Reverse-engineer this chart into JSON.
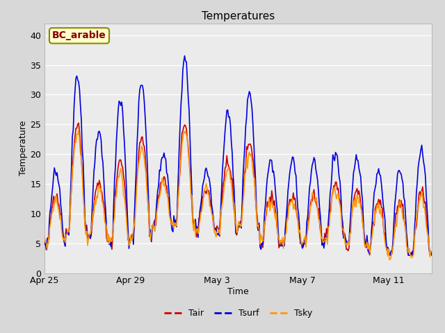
{
  "title": "Temperatures",
  "xlabel": "Time",
  "ylabel": "Temperature",
  "ylim": [
    0,
    42
  ],
  "xlim_days": [
    0,
    18
  ],
  "xtick_positions": [
    0,
    4,
    8,
    12,
    16
  ],
  "xtick_labels": [
    "Apr 25",
    "Apr 29",
    "May 3",
    "May 7",
    "May 11"
  ],
  "line_colors": {
    "Tair": "#cc0000",
    "Tsurf": "#0000dd",
    "Tsky": "#ff9900"
  },
  "line_widths": {
    "Tair": 1.2,
    "Tsurf": 1.2,
    "Tsky": 1.2
  },
  "annotation_text": "BC_arable",
  "annotation_text_color": "#8b0000",
  "annotation_bg_color": "#ffffcc",
  "annotation_border_color": "#888800",
  "fig_bg_color": "#d8d8d8",
  "plot_bg_color": "#ebebeb",
  "title_fontsize": 11,
  "axis_label_fontsize": 9,
  "tick_fontsize": 9,
  "legend_fontsize": 9,
  "n_days": 18,
  "pts_per_day": 24,
  "base_temps": [
    5,
    7,
    6,
    5,
    6,
    8,
    8,
    7,
    7,
    8,
    5,
    5,
    5,
    6,
    5,
    4,
    3,
    3
  ],
  "amp_air": [
    8,
    18,
    9,
    14,
    17,
    8,
    17,
    7,
    12,
    14,
    8,
    8,
    8,
    9,
    9,
    8,
    9,
    11
  ],
  "amp_surf": [
    12,
    26,
    18,
    24,
    26,
    12,
    28,
    10,
    20,
    22,
    14,
    14,
    14,
    14,
    14,
    13,
    14,
    18
  ],
  "amp_sky": [
    7,
    17,
    8,
    12,
    15,
    7,
    16,
    7,
    10,
    12,
    7,
    7,
    8,
    8,
    8,
    7,
    8,
    10
  ]
}
